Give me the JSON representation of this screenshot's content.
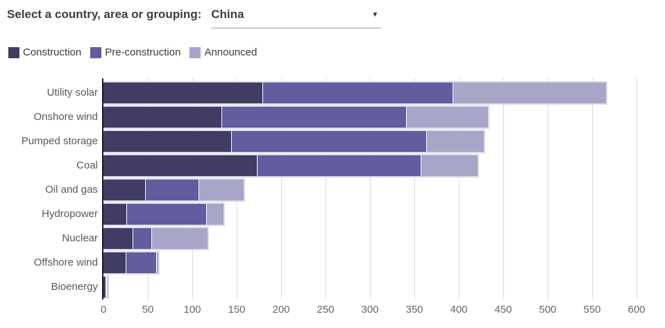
{
  "header": {
    "label": "Select a country, area or grouping:",
    "selected_country": "China"
  },
  "colors": {
    "construction": "#403c62",
    "pre_construction": "#615d9e",
    "announced": "#a7a5c8",
    "bar_outline": "#dcdaeb",
    "axis_line": "#1c1c1c",
    "gridline": "#d9d9d9",
    "category_text": "#575757",
    "tick_text": "#666666"
  },
  "chart_data": {
    "type": "bar",
    "orientation": "horizontal",
    "stacked": true,
    "categories": [
      "Utility solar",
      "Onshore wind",
      "Pumped storage",
      "Coal",
      "Oil and gas",
      "Hydropower",
      "Nuclear",
      "Offshore wind",
      "Bioenergy"
    ],
    "series": [
      {
        "name": "Construction",
        "color": "#403c62",
        "values": [
          179,
          133,
          144,
          173,
          47,
          26,
          33,
          25,
          2
        ]
      },
      {
        "name": "Pre-construction",
        "color": "#615d9e",
        "values": [
          214,
          208,
          219,
          184,
          60,
          90,
          21,
          34,
          1
        ]
      },
      {
        "name": "Announced",
        "color": "#a7a5c8",
        "values": [
          173,
          92,
          65,
          64,
          51,
          19,
          63,
          3,
          2
        ]
      }
    ],
    "totals": [
      566,
      433,
      428,
      421,
      158,
      135,
      117,
      62,
      5
    ],
    "xlim": [
      0,
      600
    ],
    "x_ticks": [
      0,
      50,
      100,
      150,
      200,
      250,
      300,
      350,
      400,
      450,
      500,
      550,
      600
    ],
    "grid": true,
    "legend_position": "top",
    "legend_labels": [
      "Construction",
      "Pre-construction",
      "Announced"
    ]
  }
}
